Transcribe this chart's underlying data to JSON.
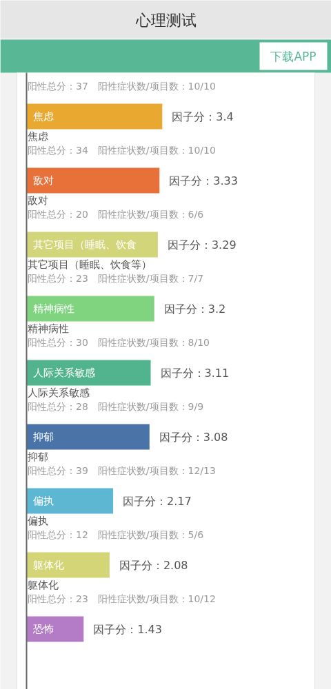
{
  "chart_data": {
    "type": "bar",
    "orientation": "horizontal",
    "title": "心理测试",
    "categories": [
      "焦虑",
      "敌对",
      "其它项目（睡眠、饮食",
      "精神病性",
      "人际关系敏感",
      "抑郁",
      "偏执",
      "躯体化",
      "恐怖"
    ],
    "values": [
      3.4,
      3.33,
      3.29,
      3.2,
      3.11,
      3.08,
      2.17,
      2.08,
      1.43
    ],
    "colors": [
      "#e9a82f",
      "#e8713a",
      "#d3d57a",
      "#80d47f",
      "#52b48e",
      "#4a73a8",
      "#5db6d2",
      "#d3d577",
      "#b47cc7"
    ],
    "value_labels": [
      "因子分：3.4",
      "因子分：3.33",
      "因子分：3.29",
      "因子分：3.2",
      "因子分：3.11",
      "因子分：3.08",
      "因子分：2.17",
      "因子分：2.08",
      "因子分：1.43"
    ],
    "annotations": [
      "下载APP",
      "阳性总分：37　阳性症状数/项目数：10/10",
      "焦虑",
      "阳性总分：34　阳性症状数/项目数：10/10",
      "敌对",
      "阳性总分：20　阳性症状数/项目数：6/6",
      "其它项目（睡眠、饮食等）",
      "阳性总分：23　阳性症状数/项目数：7/7",
      "精神病性",
      "阳性总分：30　阳性症状数/项目数：8/10",
      "人际关系敏感",
      "阳性总分：28　阳性症状数/项目数：9/9",
      "抑郁",
      "阳性总分：39　阳性症状数/项目数：12/13",
      "偏执",
      "阳性总分：12　阳性症状数/项目数：5/6",
      "躯体化",
      "阳性总分：23　阳性症状数/项目数：10/12"
    ]
  }
}
